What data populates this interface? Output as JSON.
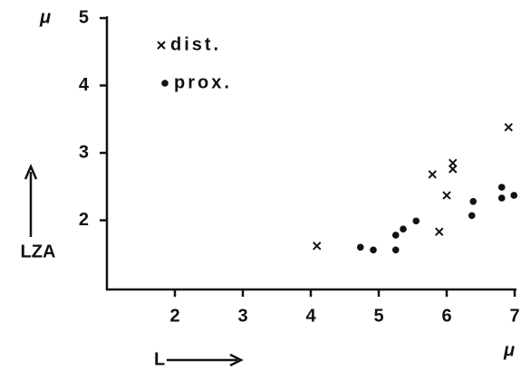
{
  "chart_data": {
    "type": "scatter",
    "y_unit": "μ",
    "x_unit": "μ",
    "y_label": "LZA",
    "x_label": "L",
    "xlim": [
      1,
      7
    ],
    "ylim": [
      1,
      5
    ],
    "xticks": [
      2,
      3,
      4,
      5,
      6,
      7
    ],
    "yticks": [
      2,
      3,
      4,
      5
    ],
    "legend": "top-left",
    "series": [
      {
        "name": "dist.",
        "marker": "x",
        "color": "#111111",
        "x": [
          4.09,
          5.79,
          6.09,
          6.09,
          6.0,
          5.89,
          6.91
        ],
        "values": [
          1.62,
          2.68,
          2.85,
          2.76,
          2.37,
          1.83,
          3.38
        ]
      },
      {
        "name": "prox.",
        "marker": "dot",
        "color": "#111111",
        "x": [
          4.73,
          4.92,
          5.25,
          5.25,
          5.36,
          5.55,
          6.39,
          6.37,
          6.81,
          6.81,
          6.99
        ],
        "values": [
          1.6,
          1.56,
          1.56,
          1.78,
          1.87,
          1.99,
          2.28,
          2.07,
          2.49,
          2.33,
          2.37
        ]
      }
    ]
  }
}
